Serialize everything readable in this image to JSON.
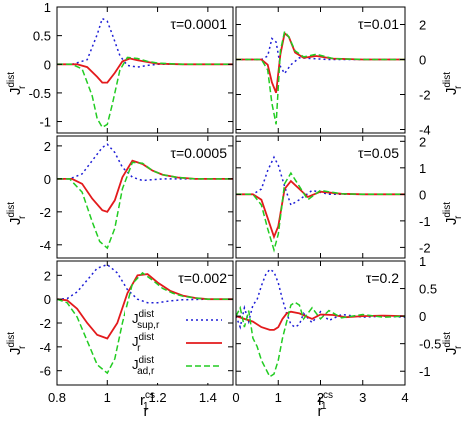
{
  "chart_data": {
    "type": "line",
    "y_axis_label": {
      "main": "J",
      "sup": "dist",
      "sub": "r"
    },
    "x_axis_label": "r",
    "x_marker_label": {
      "main": "r",
      "sup": "cs",
      "sub": "1"
    },
    "legend": [
      {
        "main": "J",
        "sup": "dist",
        "sub": "sup,r",
        "color": "#1f1fd6",
        "style": "dotted"
      },
      {
        "main": "J",
        "sup": "dist",
        "sub": "r",
        "color": "#e31a1c",
        "style": "solid"
      },
      {
        "main": "J",
        "sup": "dist",
        "sub": "ad,r",
        "color": "#22cc22",
        "style": "dashed"
      }
    ],
    "colors": {
      "sup": "#1f1fd6",
      "total": "#e31a1c",
      "ad": "#22cc22"
    },
    "panels": [
      {
        "id": "a",
        "tau_label": "τ=0.0001",
        "yaxis_side": "left",
        "xlim": [
          0.8,
          1.5
        ],
        "ylim": [
          -1.2,
          1.0
        ],
        "yticks": [
          1,
          0.5,
          0,
          -0.5,
          -1
        ],
        "ytick_labels": [
          "1",
          "0.5",
          "0",
          "-0.5",
          "-1"
        ],
        "xticks": [
          0.8,
          1.0,
          1.2,
          1.4
        ],
        "xtick_labels": [],
        "series": {
          "sup": {
            "x": [
              0.8,
              0.86,
              0.92,
              0.96,
              0.98,
              1.0,
              1.02,
              1.05,
              1.08,
              1.12,
              1.16,
              1.2,
              1.3,
              1.5
            ],
            "y": [
              0,
              0,
              0.08,
              0.52,
              0.8,
              0.75,
              0.52,
              0.15,
              -0.02,
              -0.05,
              -0.02,
              0,
              0,
              0
            ]
          },
          "total": {
            "x": [
              0.8,
              0.88,
              0.92,
              0.96,
              0.98,
              1.0,
              1.03,
              1.06,
              1.09,
              1.12,
              1.16,
              1.2,
              1.3,
              1.5
            ],
            "y": [
              0,
              0,
              -0.05,
              -0.22,
              -0.32,
              -0.32,
              -0.15,
              0.05,
              0.1,
              0.07,
              0.04,
              0.01,
              0,
              0
            ]
          },
          "ad": {
            "x": [
              0.8,
              0.86,
              0.9,
              0.94,
              0.96,
              0.98,
              1.0,
              1.02,
              1.05,
              1.08,
              1.12,
              1.16,
              1.2,
              1.3,
              1.5
            ],
            "y": [
              0,
              0,
              -0.08,
              -0.55,
              -0.95,
              -1.1,
              -1.05,
              -0.7,
              -0.1,
              0.12,
              0.1,
              0.05,
              0.02,
              0,
              0
            ]
          }
        }
      },
      {
        "id": "b",
        "tau_label": "τ=0.01",
        "yaxis_side": "right",
        "xlim": [
          0,
          4
        ],
        "ylim": [
          -4.2,
          3.0
        ],
        "yticks": [
          2,
          0,
          -2,
          -4
        ],
        "ytick_labels": [
          "2",
          "0",
          "-2",
          "-4"
        ],
        "xticks": [
          0,
          1,
          2,
          3,
          4
        ],
        "xtick_labels": [],
        "series": {
          "sup": {
            "x": [
              0,
              0.6,
              0.75,
              0.85,
              0.95,
              1.05,
              1.15,
              1.3,
              1.5,
              1.8,
              2.2,
              3,
              4
            ],
            "y": [
              0,
              0,
              0.2,
              1.2,
              1.0,
              -0.4,
              -0.8,
              -0.3,
              0.1,
              0.05,
              0,
              0,
              0
            ]
          },
          "total": {
            "x": [
              0,
              0.6,
              0.75,
              0.85,
              0.95,
              1.05,
              1.15,
              1.25,
              1.4,
              1.6,
              1.9,
              2.3,
              3,
              4
            ],
            "y": [
              0,
              0,
              -0.3,
              -1.3,
              -1.9,
              0.3,
              1.5,
              1.3,
              0.4,
              0.1,
              0.2,
              0.05,
              0,
              0
            ]
          },
          "ad": {
            "x": [
              0,
              0.6,
              0.75,
              0.85,
              0.95,
              1.05,
              1.15,
              1.25,
              1.4,
              1.6,
              1.9,
              2.3,
              3,
              4
            ],
            "y": [
              0,
              0,
              -0.6,
              -2.5,
              -3.7,
              0.5,
              1.6,
              1.3,
              0.5,
              0.15,
              0.3,
              0.05,
              0,
              0
            ]
          }
        }
      },
      {
        "id": "c",
        "tau_label": "τ=0.0005",
        "yaxis_side": "left",
        "xlim": [
          0.8,
          1.5
        ],
        "ylim": [
          -4.8,
          2.6
        ],
        "yticks": [
          2,
          0,
          -2,
          -4
        ],
        "ytick_labels": [
          "2",
          "0",
          "-2",
          "-4"
        ],
        "xticks": [
          0.8,
          1.0,
          1.2,
          1.4
        ],
        "xtick_labels": [],
        "series": {
          "sup": {
            "x": [
              0.8,
              0.85,
              0.9,
              0.95,
              0.98,
              1.0,
              1.03,
              1.06,
              1.1,
              1.14,
              1.18,
              1.22,
              1.3,
              1.5
            ],
            "y": [
              0,
              0,
              0.3,
              1.3,
              1.9,
              2.1,
              1.6,
              0.7,
              0.1,
              -0.1,
              -0.05,
              0,
              0,
              0
            ]
          },
          "total": {
            "x": [
              0.8,
              0.86,
              0.9,
              0.94,
              0.98,
              1.0,
              1.03,
              1.06,
              1.1,
              1.14,
              1.18,
              1.22,
              1.28,
              1.35,
              1.5
            ],
            "y": [
              0,
              0,
              -0.3,
              -1.2,
              -1.9,
              -2.0,
              -1.3,
              0.1,
              1.1,
              0.9,
              0.5,
              0.25,
              0.08,
              0,
              0
            ]
          },
          "ad": {
            "x": [
              0.8,
              0.85,
              0.9,
              0.94,
              0.97,
              1.0,
              1.03,
              1.06,
              1.1,
              1.14,
              1.18,
              1.22,
              1.28,
              1.35,
              1.5
            ],
            "y": [
              0,
              0,
              -0.8,
              -2.6,
              -3.8,
              -4.2,
              -3.0,
              -0.6,
              1.0,
              0.95,
              0.5,
              0.25,
              0.08,
              0,
              0
            ]
          }
        }
      },
      {
        "id": "d",
        "tau_label": "τ=0.05",
        "yaxis_side": "right",
        "xlim": [
          0,
          4
        ],
        "ylim": [
          -2.4,
          2.2
        ],
        "yticks": [
          2,
          1,
          0,
          -1,
          -2
        ],
        "ytick_labels": [
          "2",
          "1",
          "0",
          "-1",
          "-2"
        ],
        "xticks": [
          0,
          1,
          2,
          3,
          4
        ],
        "xtick_labels": [],
        "series": {
          "sup": {
            "x": [
              0,
              0.4,
              0.6,
              0.75,
              0.9,
              1.0,
              1.15,
              1.3,
              1.5,
              1.8,
              2.2,
              3,
              4
            ],
            "y": [
              0,
              0,
              0.2,
              0.9,
              1.4,
              1.1,
              0.3,
              -0.4,
              -0.2,
              0.15,
              0,
              0,
              0
            ]
          },
          "total": {
            "x": [
              0,
              0.4,
              0.6,
              0.75,
              0.9,
              1.0,
              1.15,
              1.3,
              1.5,
              1.7,
              2.0,
              2.5,
              3,
              4
            ],
            "y": [
              0,
              0,
              -0.2,
              -0.9,
              -1.6,
              -1.2,
              0.2,
              0.5,
              0.2,
              -0.1,
              0.1,
              0.02,
              0,
              0
            ]
          },
          "ad": {
            "x": [
              0,
              0.4,
              0.6,
              0.75,
              0.9,
              1.0,
              1.15,
              1.3,
              1.5,
              1.7,
              2.0,
              2.5,
              3,
              4
            ],
            "y": [
              0,
              0,
              -0.4,
              -1.3,
              -2.1,
              -1.5,
              0.4,
              0.8,
              0.3,
              -0.2,
              0.15,
              0.02,
              0,
              0
            ]
          }
        }
      },
      {
        "id": "e",
        "tau_label": "τ=0.002",
        "yaxis_side": "left",
        "xlim": [
          0.8,
          1.5
        ],
        "ylim": [
          -7.2,
          3.2
        ],
        "yticks": [
          2,
          0,
          -2,
          -4,
          -6
        ],
        "ytick_labels": [
          "2",
          "0",
          "-2",
          "-4",
          "-6"
        ],
        "xticks": [
          0.8,
          1.0,
          1.2,
          1.4
        ],
        "xtick_labels": [
          "0.8",
          "1",
          "1.2",
          "1.4"
        ],
        "series": {
          "sup": {
            "x": [
              0.8,
              0.84,
              0.88,
              0.92,
              0.96,
              1.0,
              1.04,
              1.08,
              1.12,
              1.16,
              1.2,
              1.25,
              1.3,
              1.4,
              1.5
            ],
            "y": [
              0,
              0.05,
              0.6,
              1.6,
              2.6,
              2.9,
              2.2,
              0.8,
              0,
              -0.3,
              -0.3,
              -0.15,
              -0.05,
              0,
              0
            ]
          },
          "total": {
            "x": [
              0.8,
              0.84,
              0.88,
              0.92,
              0.96,
              1.0,
              1.04,
              1.08,
              1.12,
              1.16,
              1.2,
              1.25,
              1.3,
              1.35,
              1.4,
              1.5
            ],
            "y": [
              0,
              -0.1,
              -0.8,
              -2.0,
              -3.0,
              -3.3,
              -2.0,
              0.5,
              2.0,
              2.1,
              1.4,
              0.7,
              0.3,
              0.1,
              0,
              0
            ]
          },
          "ad": {
            "x": [
              0.8,
              0.84,
              0.88,
              0.92,
              0.96,
              1.0,
              1.03,
              1.06,
              1.1,
              1.14,
              1.18,
              1.22,
              1.26,
              1.3,
              1.35,
              1.4,
              1.5
            ],
            "y": [
              0,
              -0.3,
              -1.5,
              -3.5,
              -5.5,
              -6.2,
              -5.0,
              -2.0,
              1.3,
              2.2,
              1.6,
              0.9,
              0.5,
              0.25,
              0.1,
              0,
              0
            ]
          }
        }
      },
      {
        "id": "f",
        "tau_label": "τ=0.2",
        "yaxis_side": "right",
        "xlim": [
          0,
          4
        ],
        "ylim": [
          -1.25,
          1.0
        ],
        "yticks": [
          1,
          0.5,
          0,
          -0.5,
          -1
        ],
        "ytick_labels": [
          "1",
          "0.5",
          "0",
          "-0.5",
          "-1"
        ],
        "xticks": [
          0,
          1,
          2,
          3,
          4
        ],
        "xtick_labels": [
          "0",
          "1",
          "2",
          "3",
          "4"
        ],
        "series": {
          "sup": {
            "x": [
              0,
              0.1,
              0.2,
              0.3,
              0.4,
              0.5,
              0.6,
              0.7,
              0.8,
              0.9,
              1.0,
              1.1,
              1.2,
              1.3,
              1.4,
              1.5,
              1.6,
              1.8,
              2.0,
              2.2,
              2.5,
              3.0,
              3.5,
              4.0
            ],
            "y": [
              0.0,
              -0.2,
              0.15,
              -0.1,
              0.2,
              0.3,
              0.55,
              0.75,
              0.85,
              0.8,
              0.6,
              0.3,
              0.05,
              -0.15,
              -0.2,
              -0.15,
              0.05,
              -0.12,
              0.08,
              -0.08,
              0.03,
              -0.02,
              0.0,
              -0.02
            ]
          },
          "total": {
            "x": [
              0,
              0.2,
              0.4,
              0.6,
              0.8,
              0.9,
              1.0,
              1.1,
              1.2,
              1.3,
              1.5,
              1.8,
              2.0,
              2.3,
              2.6,
              3.0,
              3.5,
              4.0
            ],
            "y": [
              0.0,
              -0.05,
              -0.1,
              -0.2,
              -0.25,
              -0.25,
              -0.2,
              -0.05,
              0.05,
              0.08,
              0.05,
              -0.05,
              0.03,
              0.02,
              -0.02,
              0.0,
              0.01,
              0.0
            ]
          },
          "ad": {
            "x": [
              0,
              0.1,
              0.2,
              0.3,
              0.4,
              0.5,
              0.6,
              0.7,
              0.8,
              0.9,
              1.0,
              1.1,
              1.2,
              1.3,
              1.4,
              1.5,
              1.6,
              1.8,
              2.0,
              2.2,
              2.5,
              3.0,
              3.5,
              4.0
            ],
            "y": [
              0.0,
              0.15,
              -0.2,
              0.1,
              -0.4,
              -0.55,
              -0.8,
              -0.95,
              -1.1,
              -1.05,
              -0.8,
              -0.4,
              -0.1,
              0.2,
              0.25,
              0.2,
              -0.05,
              0.15,
              -0.05,
              0.1,
              -0.03,
              0.03,
              -0.02,
              0.0
            ]
          }
        }
      }
    ]
  }
}
